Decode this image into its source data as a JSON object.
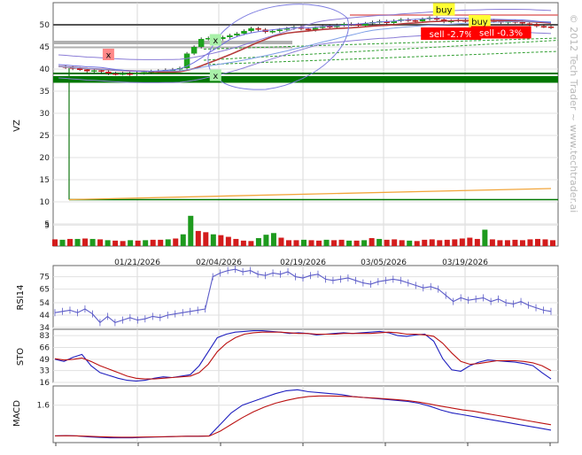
{
  "chart_data": [
    {
      "type": "candlestick",
      "ylabel": "VZ",
      "ylim": [
        0,
        55
      ],
      "yticks": [
        5,
        10,
        15,
        20,
        25,
        30,
        35,
        40,
        45,
        50
      ],
      "dates": [
        "01/21/2026",
        "02/04/2026",
        "02/19/2026",
        "03/05/2026",
        "03/19/2026"
      ],
      "price_path": [
        40.6,
        40.4,
        40.1,
        39.9,
        39.5,
        39.7,
        39.4,
        39.0,
        38.9,
        39.0,
        38.8,
        39.1,
        39.3,
        39.5,
        39.6,
        39.8,
        39.9,
        40.2,
        43.5,
        45.0,
        46.8,
        47.0,
        46.8,
        47.2,
        47.6,
        48.0,
        48.6,
        49.2,
        48.9,
        48.4,
        48.6,
        48.9,
        49.2,
        49.5,
        49.1,
        48.8,
        49.3,
        49.7,
        49.5,
        49.9,
        50.2,
        50.1,
        49.8,
        50.3,
        50.6,
        50.8,
        50.4,
        50.9,
        51.2,
        51.0,
        50.8,
        51.3,
        51.6,
        51.2,
        50.7,
        50.9,
        51.1,
        50.7,
        50.6,
        50.9,
        51.0,
        50.8,
        50.5,
        50.8,
        50.6,
        50.3,
        50.1,
        49.7,
        49.6,
        49.4
      ],
      "horizontal_lines": [
        {
          "y": 38.0,
          "color": "#007700"
        },
        {
          "y": 37.3,
          "color": "#007700"
        },
        {
          "y": 39.0,
          "color": "#007700"
        },
        {
          "y": 10.5,
          "color": "#007700"
        },
        {
          "y": 50.0,
          "color": "#555555"
        }
      ],
      "moving_average_end": 13.0,
      "annotations": [
        {
          "text": "x",
          "kind": "sell-mark",
          "x_index": 7,
          "y": 43.3
        },
        {
          "text": "x",
          "kind": "buy-mark",
          "x_index": 22,
          "y": 46.6
        },
        {
          "text": "x",
          "kind": "buy-mark",
          "x_index": 22,
          "y": 38.6
        },
        {
          "text": "buy",
          "kind": "buy",
          "x_index": 54,
          "y": 53.5
        },
        {
          "text": "buy",
          "kind": "buy",
          "x_index": 59,
          "y": 50.8
        },
        {
          "text": "sell -2.7%",
          "kind": "sell",
          "x_index": 55,
          "y": 48.0
        },
        {
          "text": "sell -0.3%",
          "kind": "sell",
          "x_index": 62,
          "y": 48.3
        }
      ],
      "watermark": "© 2012 Tech Trader ~ www.techtrader.ai"
    },
    {
      "type": "bar",
      "name": "volume",
      "yticks": [
        5
      ],
      "ylim": [
        0,
        8
      ],
      "values": [
        1.6,
        1.5,
        1.7,
        1.7,
        1.8,
        1.7,
        1.6,
        1.4,
        1.3,
        1.2,
        1.4,
        1.3,
        1.4,
        1.5,
        1.5,
        1.6,
        1.8,
        2.8,
        7.2,
        3.6,
        3.3,
        2.8,
        2.6,
        2.2,
        1.7,
        1.3,
        1.2,
        1.9,
        2.7,
        3.1,
        2.0,
        1.4,
        1.4,
        1.5,
        1.4,
        1.3,
        1.5,
        1.4,
        1.5,
        1.3,
        1.3,
        1.4,
        1.9,
        1.7,
        1.5,
        1.6,
        1.4,
        1.3,
        1.2,
        1.5,
        1.6,
        1.4,
        1.5,
        1.6,
        1.8,
        2.0,
        1.7,
        3.9,
        1.6,
        1.4,
        1.4,
        1.5,
        1.4,
        1.6,
        1.7,
        1.6,
        1.4
      ]
    },
    {
      "type": "line",
      "ylabel": "RSI14",
      "ylim": [
        34,
        84
      ],
      "yticks": [
        34,
        44,
        54,
        65,
        75
      ],
      "values": [
        46,
        47,
        48,
        46,
        49,
        45,
        38,
        43,
        38,
        40,
        42,
        40,
        41,
        43,
        42,
        44,
        45,
        46,
        47,
        48,
        49,
        75,
        78,
        80,
        81,
        79,
        80,
        77,
        76,
        78,
        77,
        79,
        75,
        74,
        76,
        77,
        73,
        72,
        73,
        74,
        72,
        70,
        69,
        71,
        72,
        73,
        72,
        70,
        68,
        66,
        67,
        65,
        60,
        55,
        58,
        56,
        57,
        58,
        55,
        57,
        54,
        53,
        55,
        52,
        50,
        48,
        47
      ]
    },
    {
      "type": "line",
      "ylabel": "STO",
      "ylim": [
        16,
        92
      ],
      "yticks": [
        16,
        33,
        49,
        66,
        83
      ],
      "series": [
        {
          "color": "#1f1fbf",
          "values": [
            49,
            46,
            52,
            56,
            40,
            30,
            26,
            22,
            19,
            18,
            19,
            22,
            24,
            23,
            25,
            27,
            40,
            60,
            80,
            85,
            88,
            89,
            90,
            90,
            89,
            88,
            86,
            87,
            86,
            84,
            85,
            86,
            87,
            86,
            87,
            88,
            89,
            87,
            83,
            82,
            84,
            85,
            75,
            50,
            34,
            32,
            40,
            45,
            48,
            47,
            46,
            45,
            43,
            40,
            30,
            21
          ]
        },
        {
          "color": "#bb1111",
          "values": [
            50,
            48,
            49,
            51,
            46,
            40,
            35,
            30,
            25,
            22,
            21,
            21,
            22,
            23,
            24,
            25,
            30,
            42,
            60,
            72,
            80,
            85,
            87,
            88,
            88,
            88,
            87,
            86,
            86,
            85,
            85,
            85,
            86,
            86,
            86,
            86,
            87,
            88,
            87,
            85,
            85,
            84,
            82,
            72,
            58,
            46,
            42,
            43,
            45,
            47,
            47,
            47,
            46,
            44,
            40,
            33
          ]
        }
      ]
    },
    {
      "type": "line",
      "ylabel": "MACD",
      "ylim": [
        -0.35,
        2.6
      ],
      "yticks": [
        1.6
      ],
      "series": [
        {
          "color": "#1f1fbf",
          "values": [
            0.0,
            0.02,
            0.0,
            -0.05,
            -0.08,
            -0.1,
            -0.1,
            -0.1,
            -0.08,
            -0.06,
            -0.05,
            -0.03,
            -0.02,
            -0.02,
            0.0,
            0.6,
            1.2,
            1.6,
            1.8,
            2.0,
            2.2,
            2.35,
            2.4,
            2.3,
            2.25,
            2.2,
            2.15,
            2.05,
            2.0,
            1.95,
            1.9,
            1.85,
            1.8,
            1.7,
            1.55,
            1.35,
            1.2,
            1.1,
            1.0,
            0.9,
            0.8,
            0.7,
            0.6,
            0.5,
            0.4,
            0.3
          ]
        },
        {
          "color": "#bb1111",
          "values": [
            0.0,
            0.01,
            0.0,
            -0.02,
            -0.04,
            -0.06,
            -0.07,
            -0.07,
            -0.06,
            -0.05,
            -0.04,
            -0.03,
            -0.02,
            -0.02,
            -0.01,
            0.25,
            0.6,
            0.95,
            1.25,
            1.5,
            1.7,
            1.85,
            1.97,
            2.05,
            2.08,
            2.08,
            2.06,
            2.04,
            2.0,
            1.97,
            1.93,
            1.89,
            1.84,
            1.76,
            1.66,
            1.55,
            1.45,
            1.35,
            1.28,
            1.18,
            1.08,
            0.98,
            0.88,
            0.78,
            0.68,
            0.58
          ]
        }
      ]
    }
  ]
}
